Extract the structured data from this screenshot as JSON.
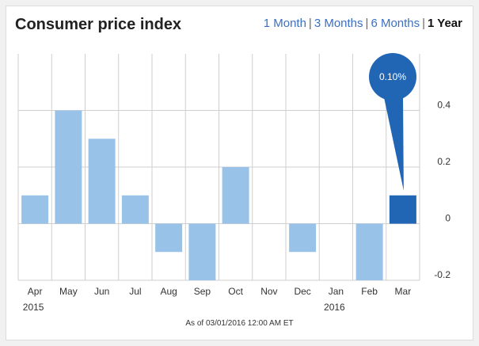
{
  "header": {
    "title": "Consumer price index",
    "ranges": [
      "1 Month",
      "3 Months",
      "6 Months",
      "1 Year"
    ],
    "active_range": "1 Year"
  },
  "footer": {
    "as_of": "As of 03/01/2016 12:00 AM ET"
  },
  "colors": {
    "bar": "#99c2e8",
    "bar_highlight": "#2166b5",
    "callout": "#2166b5",
    "gridline": "#cfcfcf"
  },
  "chart_data": {
    "type": "bar",
    "title": "Consumer price index",
    "categories": [
      "Apr",
      "May",
      "Jun",
      "Jul",
      "Aug",
      "Sep",
      "Oct",
      "Nov",
      "Dec",
      "Jan",
      "Feb",
      "Mar"
    ],
    "year_labels": [
      {
        "category": "Apr",
        "label": "2015"
      },
      {
        "category": "Jan",
        "label": "2016"
      }
    ],
    "values": [
      0.1,
      0.4,
      0.3,
      0.1,
      -0.1,
      -0.2,
      0.2,
      0.0,
      -0.1,
      0.0,
      -0.2,
      0.1
    ],
    "highlight": {
      "category": "Mar",
      "label": "0.10%"
    },
    "yticks": [
      -0.2,
      0,
      0.2,
      0.4
    ],
    "ytick_labels": [
      "-0.2",
      "0",
      "0.2",
      "0.4"
    ],
    "ylim": [
      -0.2,
      0.6
    ],
    "y_axis_position": "right",
    "grid": true
  }
}
